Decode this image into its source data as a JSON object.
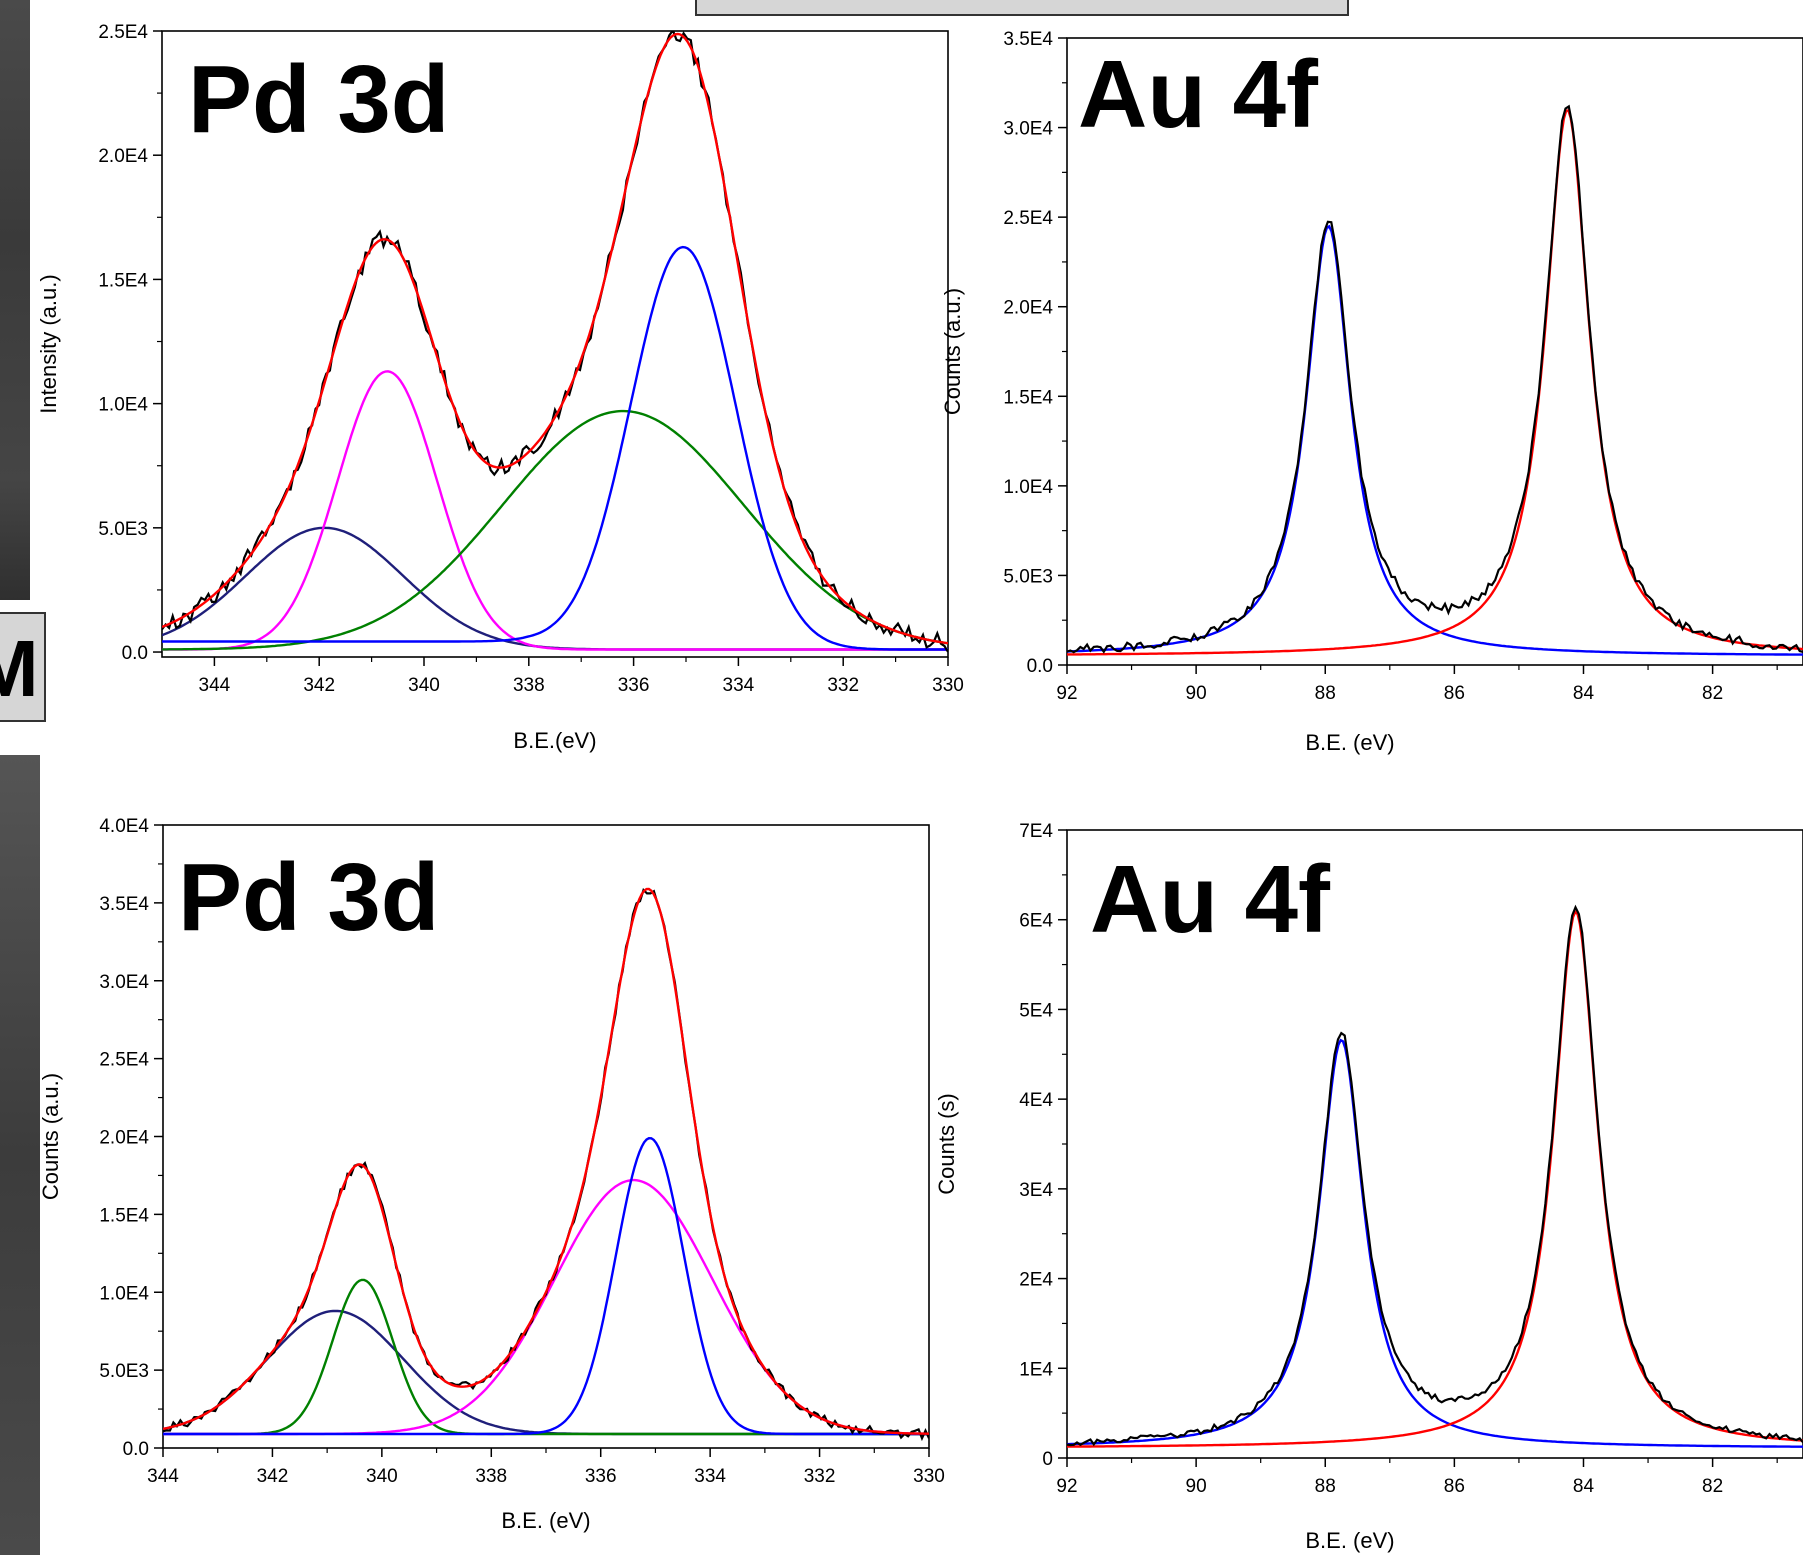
{
  "left_label": "M",
  "chart_data": [
    {
      "type": "line",
      "title": "Pd 3d",
      "xlabel": "B.E.(eV)",
      "ylabel": "Intensity (a.u.)",
      "xlim": [
        345,
        330
      ],
      "ylim": [
        -200,
        25000
      ],
      "xticks": [
        344,
        342,
        340,
        338,
        336,
        334,
        332,
        330
      ],
      "yticks": [
        0,
        5000,
        10000,
        15000,
        20000,
        25000
      ],
      "ytick_labels": [
        "0.0",
        "5.0E3",
        "1.0E4",
        "1.5E4",
        "2.0E4",
        "2.5E4"
      ],
      "grid": false,
      "components": [
        {
          "color": "#1f1f7a",
          "kind": "gauss",
          "center": 341.9,
          "height": 4900,
          "width": 1.5,
          "offset": 100
        },
        {
          "color": "#ff00ff",
          "kind": "gauss",
          "center": 340.7,
          "height": 11200,
          "width": 0.95,
          "offset": 100
        },
        {
          "color": "#008000",
          "kind": "gauss",
          "center": 336.2,
          "height": 9600,
          "width": 2.3,
          "offset": 100
        },
        {
          "color": "#0000ff",
          "kind": "gauss",
          "center": 335.05,
          "height": 16200,
          "width": 1.0,
          "offset": 100,
          "tail": 0.02
        },
        {
          "color": "#ff0000",
          "kind": "sum",
          "of": [
            0,
            1,
            2,
            3
          ]
        },
        {
          "color": "#000000",
          "kind": "data",
          "of": [
            0,
            1,
            2,
            3
          ],
          "noise": 350
        }
      ]
    },
    {
      "type": "line",
      "title": "Au 4f",
      "xlabel": "B.E. (eV)",
      "ylabel": "Counts (a.u.)",
      "xlim": [
        92,
        80.6
      ],
      "ylim": [
        0,
        35000
      ],
      "xticks": [
        92,
        90,
        88,
        86,
        84,
        82
      ],
      "yticks": [
        0,
        5000,
        10000,
        15000,
        20000,
        25000,
        30000,
        35000
      ],
      "ytick_labels": [
        "0.0",
        "5.0E3",
        "1.0E4",
        "1.5E4",
        "2.0E4",
        "2.5E4",
        "3.0E4",
        "3.5E4"
      ],
      "grid": false,
      "components": [
        {
          "color": "#0000ff",
          "kind": "lorentz",
          "center": 87.95,
          "height": 24000,
          "width": 0.42,
          "offset": 500
        },
        {
          "color": "#ff0000",
          "kind": "lorentz",
          "center": 84.25,
          "height": 30500,
          "width": 0.42,
          "offset": 500
        },
        {
          "color": "#000000",
          "kind": "data",
          "of": [
            0,
            1
          ],
          "noise": 250
        }
      ]
    },
    {
      "type": "line",
      "title": "Pd 3d",
      "xlabel": "B.E. (eV)",
      "ylabel": "Counts (a.u.)",
      "xlim": [
        344,
        330
      ],
      "ylim": [
        0,
        40000
      ],
      "xticks": [
        344,
        342,
        340,
        338,
        336,
        334,
        332,
        330
      ],
      "yticks": [
        0,
        5000,
        10000,
        15000,
        20000,
        25000,
        30000,
        35000,
        40000
      ],
      "ytick_labels": [
        "0.0",
        "5.0E3",
        "1.0E4",
        "1.5E4",
        "2.0E4",
        "2.5E4",
        "3.0E4",
        "3.5E4",
        "4.0E4"
      ],
      "grid": false,
      "components": [
        {
          "color": "#1f1f7a",
          "kind": "gauss",
          "center": 340.85,
          "height": 7900,
          "width": 1.25,
          "offset": 900
        },
        {
          "color": "#008000",
          "kind": "gauss",
          "center": 340.35,
          "height": 9900,
          "width": 0.55,
          "offset": 900
        },
        {
          "color": "#ff00ff",
          "kind": "gauss",
          "center": 335.4,
          "height": 16300,
          "width": 1.45,
          "offset": 900
        },
        {
          "color": "#0000ff",
          "kind": "gauss",
          "center": 335.1,
          "height": 19000,
          "width": 0.62,
          "offset": 900
        },
        {
          "color": "#ff0000",
          "kind": "sum",
          "of": [
            0,
            1,
            2,
            3
          ]
        },
        {
          "color": "#000000",
          "kind": "data",
          "of": [
            0,
            1,
            2,
            3
          ],
          "noise": 300
        }
      ]
    },
    {
      "type": "line",
      "title": "Au 4f",
      "xlabel": "B.E. (eV)",
      "ylabel": "Counts (s)",
      "xlim": [
        92,
        80.6
      ],
      "ylim": [
        0,
        70000
      ],
      "xticks": [
        92,
        90,
        88,
        86,
        84,
        82
      ],
      "yticks": [
        0,
        10000,
        20000,
        30000,
        40000,
        50000,
        60000,
        70000
      ],
      "ytick_labels": [
        "0",
        "1E4",
        "2E4",
        "3E4",
        "4E4",
        "5E4",
        "6E4",
        "7E4"
      ],
      "grid": false,
      "components": [
        {
          "color": "#0000ff",
          "kind": "lorentz",
          "center": 87.75,
          "height": 45500,
          "width": 0.42,
          "offset": 1100
        },
        {
          "color": "#ff0000",
          "kind": "lorentz",
          "center": 84.12,
          "height": 59800,
          "width": 0.42,
          "offset": 1100
        },
        {
          "color": "#000000",
          "kind": "data",
          "of": [
            0,
            1
          ],
          "noise": 350
        }
      ]
    }
  ]
}
